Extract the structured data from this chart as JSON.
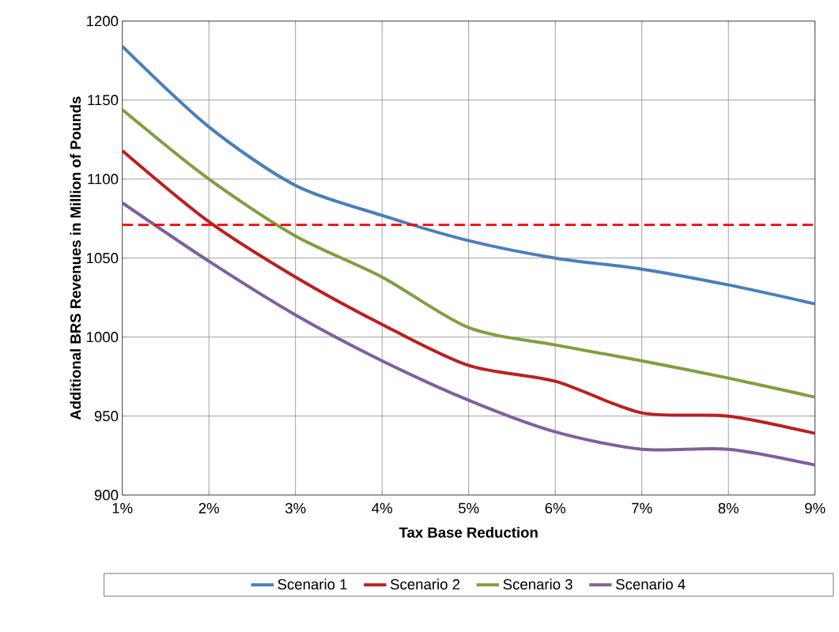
{
  "chart_data": {
    "type": "line",
    "categories": [
      "1%",
      "2%",
      "3%",
      "4%",
      "5%",
      "6%",
      "7%",
      "8%",
      "9%"
    ],
    "series": [
      {
        "name": "Scenario 1",
        "color": "#4a7ebb",
        "values": [
          1184,
          1133,
          1096,
          1077,
          1061,
          1050,
          1043,
          1033,
          1021
        ]
      },
      {
        "name": "Scenario 2",
        "color": "#be1e1e",
        "values": [
          1118,
          1073,
          1038,
          1008,
          982,
          972,
          952,
          950,
          939
        ]
      },
      {
        "name": "Scenario 3",
        "color": "#7f9f3f",
        "values": [
          1144,
          1100,
          1064,
          1038,
          1006,
          995,
          985,
          974,
          962
        ]
      },
      {
        "name": "Scenario 4",
        "color": "#7f5fa0",
        "values": [
          1085,
          1048,
          1014,
          985,
          960,
          940,
          929,
          929,
          919
        ]
      }
    ],
    "ylim": [
      900,
      1200
    ],
    "yticks": [
      900,
      950,
      1000,
      1050,
      1100,
      1150,
      1200
    ],
    "xlabel": "Tax Base Reduction",
    "ylabel": "Additional BRS Revenues in Million of Pounds",
    "grid": true,
    "legend": "bottom",
    "ref_lines": [
      {
        "axis": "y",
        "value": 1071,
        "color": "#ff0000",
        "line_style": "dashed"
      }
    ]
  }
}
